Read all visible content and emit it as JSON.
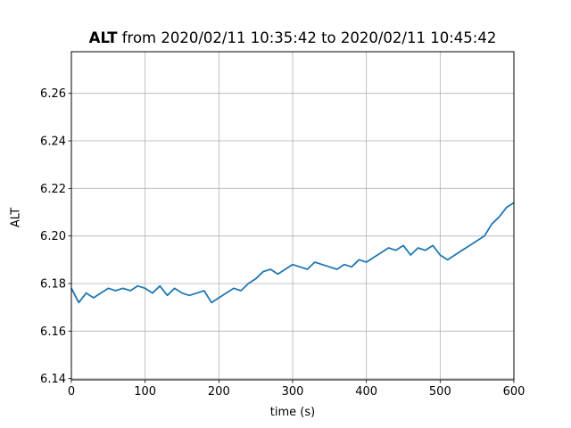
{
  "chart_data": {
    "type": "line",
    "title_bold": "ALT",
    "title_rest": " from 2020/02/11 10:35:42 to 2020/02/11 10:45:42",
    "xlabel": "time (s)",
    "ylabel": "ALT",
    "xlim": [
      0,
      600
    ],
    "ylim": [
      6.1395,
      6.2775
    ],
    "xticks": [
      0,
      100,
      200,
      300,
      400,
      500,
      600
    ],
    "yticks": [
      6.14,
      6.16,
      6.18,
      6.2,
      6.22,
      6.24,
      6.26
    ],
    "grid": true,
    "legend": "none",
    "series_color": "#1f77b4",
    "series": [
      {
        "x": [
          0,
          10,
          20,
          30,
          40,
          50,
          60,
          70,
          80,
          90,
          100,
          110,
          120,
          130,
          140,
          150,
          160,
          170,
          180,
          190,
          200,
          210,
          220,
          230,
          240,
          250,
          260,
          270,
          280,
          290,
          300,
          310,
          320,
          330,
          340,
          350,
          360,
          370,
          380,
          390,
          400,
          410,
          420,
          430,
          440,
          450,
          460,
          470,
          480,
          490,
          500,
          510,
          520,
          530,
          540,
          550,
          560,
          570,
          580,
          590,
          600
        ],
        "y": [
          6.178,
          6.172,
          6.176,
          6.174,
          6.176,
          6.178,
          6.177,
          6.178,
          6.177,
          6.179,
          6.178,
          6.176,
          6.179,
          6.175,
          6.178,
          6.176,
          6.175,
          6.176,
          6.177,
          6.172,
          6.174,
          6.176,
          6.178,
          6.177,
          6.18,
          6.182,
          6.185,
          6.186,
          6.184,
          6.186,
          6.188,
          6.187,
          6.186,
          6.189,
          6.188,
          6.187,
          6.186,
          6.188,
          6.187,
          6.19,
          6.189,
          6.191,
          6.193,
          6.195,
          6.194,
          6.196,
          6.192,
          6.195,
          6.194,
          6.196,
          6.192,
          6.19,
          6.192,
          6.194,
          6.196,
          6.198,
          6.2,
          6.205,
          6.208,
          6.212,
          6.214
        ]
      }
    ]
  }
}
